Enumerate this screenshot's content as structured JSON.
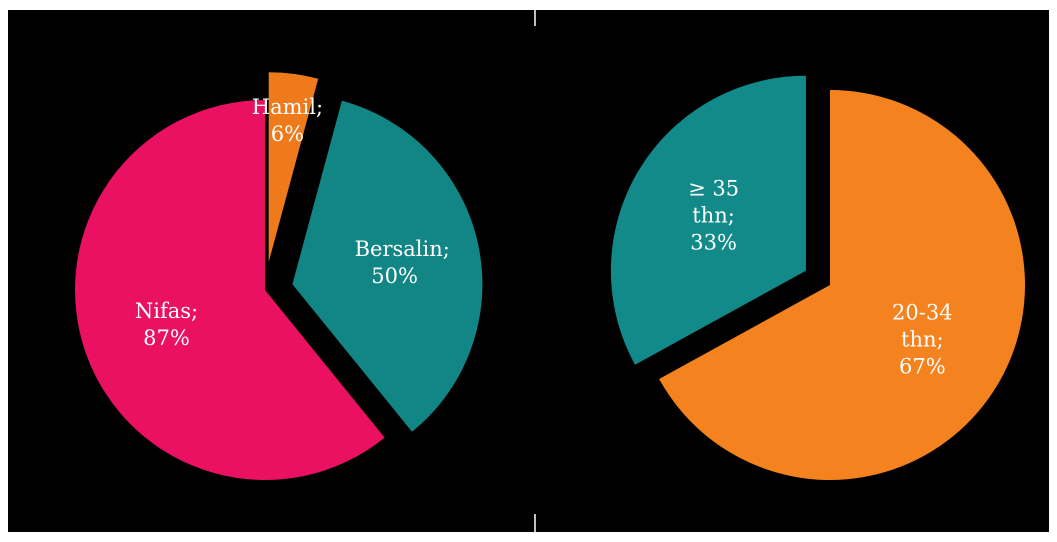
{
  "chart_data": [
    {
      "type": "pie",
      "categories": [
        "Hamil;",
        "Bersalin;",
        "Nifas;"
      ],
      "values": [
        6,
        50,
        87
      ],
      "value_labels": [
        "6%",
        "50%",
        "87%"
      ],
      "colors": [
        "#ee7a1c",
        "#128585",
        "#ea1062"
      ],
      "explode": [
        true,
        true,
        false
      ]
    },
    {
      "type": "pie",
      "categories": [
        "20-34 thn;",
        "≥ 35 thn;"
      ],
      "values": [
        67,
        33
      ],
      "value_labels": [
        "67%",
        "33%"
      ],
      "colors": [
        "#f4821e",
        "#138a8a"
      ],
      "explode": [
        false,
        true
      ]
    }
  ]
}
